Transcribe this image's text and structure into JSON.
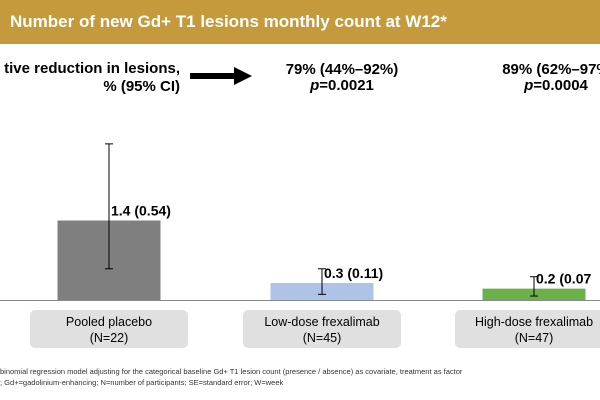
{
  "header": {
    "title": "Number of new Gd+ T1 lesions monthly count at W12*"
  },
  "relative_reduction": {
    "label_line1": "tive reduction in lesions,",
    "label_line2": "% (95% CI)"
  },
  "results": [
    {
      "text": "79% (44%–92%)",
      "p_label": "p",
      "p_value": "=0.0021"
    },
    {
      "text": "89% (62%–97%",
      "p_label": "p",
      "p_value": "=0.0004"
    }
  ],
  "chart_data": {
    "type": "bar",
    "categories": [
      "Pooled placebo",
      "Low-dose frexalimab",
      "High-dose frexalimab"
    ],
    "n_labels": [
      "(N=22)",
      "(N=45)",
      "(N=47)"
    ],
    "values": [
      1.4,
      0.3,
      0.2
    ],
    "se": [
      0.54,
      0.11,
      0.07
    ],
    "data_labels": [
      "1.4 (0.54)",
      "0.3 (0.11)",
      "0.2 (0.07"
    ],
    "error_bars": [
      [
        0.55,
        2.75
      ],
      [
        0.1,
        0.55
      ],
      [
        0.07,
        0.41
      ]
    ],
    "colors": [
      "#7f7f7f",
      "#adc4e6",
      "#6cb04a"
    ],
    "ylim": [
      0,
      3.1
    ],
    "title": "Number of new Gd+ T1 lesions monthly count at W12*",
    "xlabel": "",
    "ylabel": ""
  },
  "footnotes": {
    "line1": "binomial regression model adjusting for the categorical baseline Gd+ T1 lesion count (presence / absence) as covariate, treatment as factor",
    "line2": "; Gd+=gadolinium-enhancing; N=number of participants; SE=standard error; W=week"
  }
}
